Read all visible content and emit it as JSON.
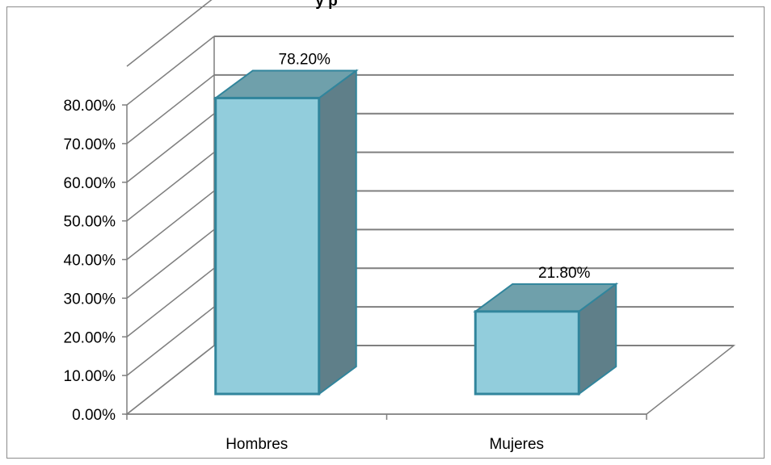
{
  "chart_data": {
    "type": "bar",
    "subtype": "3d-column",
    "title_fragment": "y p",
    "categories": [
      "Hombres",
      "Mujeres"
    ],
    "series": [
      {
        "values": [
          0.782,
          0.218
        ]
      }
    ],
    "data_labels": [
      "78.20%",
      "21.80%"
    ],
    "y_ticks": [
      "0.00%",
      "10.00%",
      "20.00%",
      "30.00%",
      "40.00%",
      "50.00%",
      "60.00%",
      "70.00%",
      "80.00%"
    ],
    "ylim": [
      0,
      0.8
    ],
    "grid": true,
    "legend": "none",
    "colors": {
      "bar_front": "#92cddc",
      "bar_side": "#5f7f89",
      "bar_top": "#6fa0ab",
      "bar_edge": "#31859c",
      "grid": "#7f7f7f",
      "frame": "#8c8c8c"
    }
  }
}
